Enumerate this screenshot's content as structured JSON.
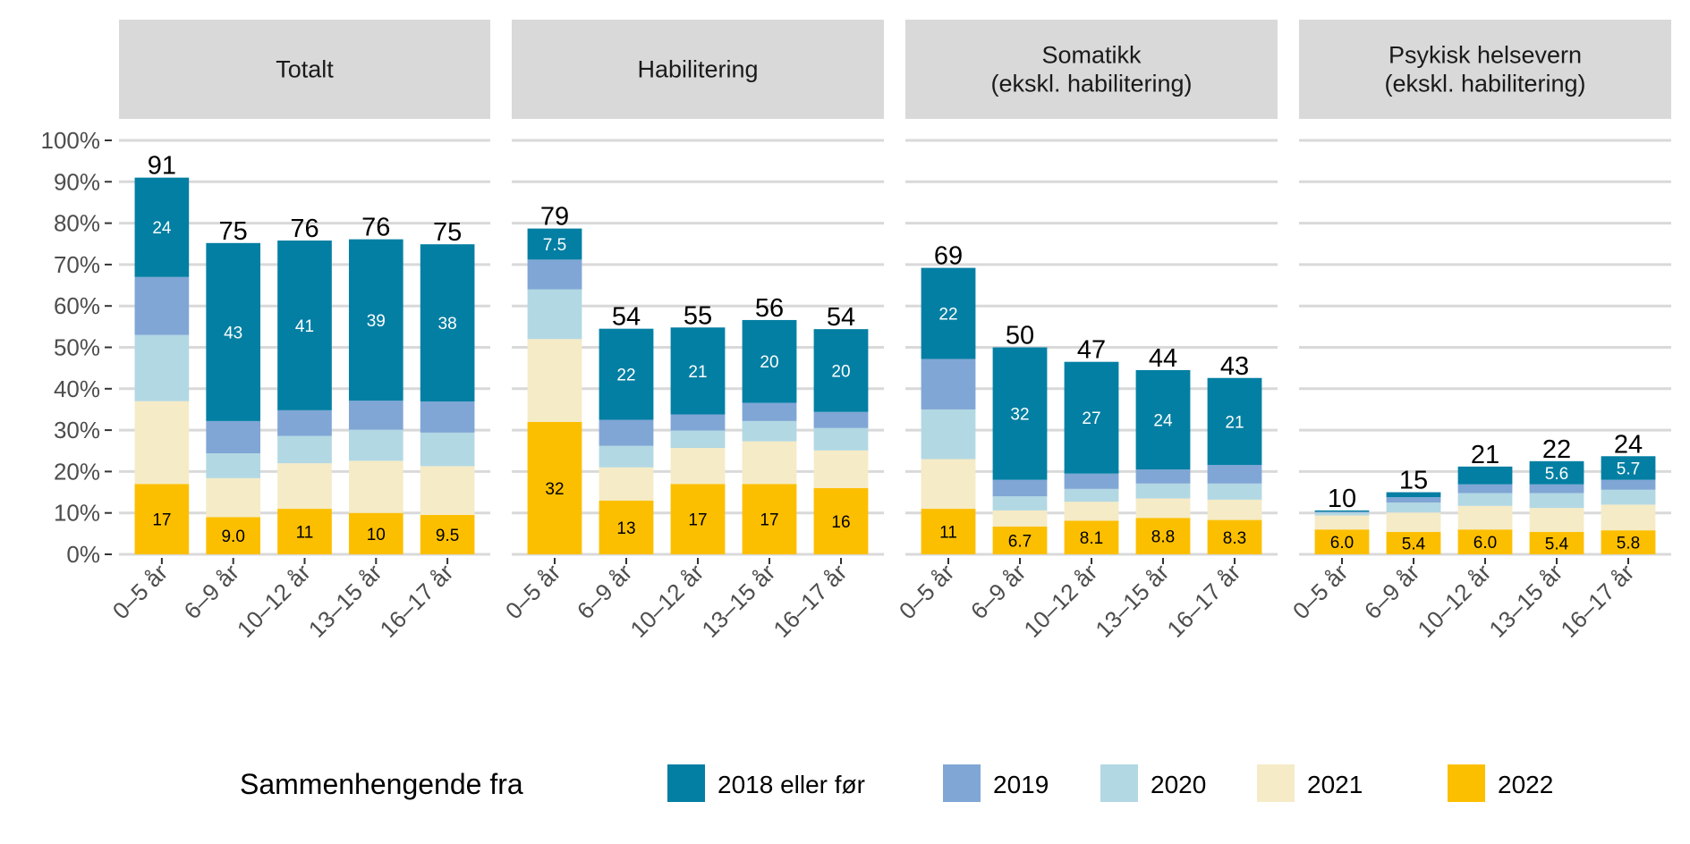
{
  "chart_data": {
    "type": "bar",
    "stacked": true,
    "categories": [
      "0–5 år",
      "6–9 år",
      "10–12 år",
      "13–15 år",
      "16–17 år"
    ],
    "ylim": [
      0,
      100
    ],
    "y_ticks": [
      "0%",
      "10%",
      "20%",
      "30%",
      "40%",
      "50%",
      "60%",
      "70%",
      "80%",
      "90%",
      "100%"
    ],
    "grid": true,
    "legend": {
      "title": "Sammenhengende fra",
      "position": "bottom",
      "entries": [
        "2018 eller før",
        "2019",
        "2020",
        "2021",
        "2022"
      ]
    },
    "colors": {
      "2018 eller før": "#037fa3",
      "2019": "#80a6d5",
      "2020": "#b2d8e3",
      "2021": "#f5ebc6",
      "2022": "#fcbf00"
    },
    "panels": [
      {
        "title": "Totalt",
        "totals": [
          "91",
          "75",
          "76",
          "76",
          "75"
        ],
        "series": [
          {
            "name": "2022",
            "values": [
              17,
              9.0,
              11,
              10,
              9.5
            ],
            "labels": [
              "17",
              "9.0",
              "11",
              "10",
              "9.5"
            ]
          },
          {
            "name": "2021",
            "values": [
              20,
              9.4,
              11,
              12.6,
              11.8
            ]
          },
          {
            "name": "2020",
            "values": [
              16,
              6,
              6.6,
              7.5,
              8.1
            ]
          },
          {
            "name": "2019",
            "values": [
              14,
              7.8,
              6.2,
              7,
              7.5
            ]
          },
          {
            "name": "2018 eller før",
            "values": [
              24,
              43,
              41,
              39,
              38
            ],
            "labels": [
              "24",
              "43",
              "41",
              "39",
              "38"
            ]
          }
        ]
      },
      {
        "title": "Habilitering",
        "totals": [
          "79",
          "54",
          "55",
          "56",
          "54"
        ],
        "series": [
          {
            "name": "2022",
            "values": [
              32,
              13,
              17,
              17,
              16
            ],
            "labels": [
              "32",
              "13",
              "17",
              "17",
              "16"
            ]
          },
          {
            "name": "2021",
            "values": [
              20,
              8,
              8.7,
              10.3,
              9.1
            ]
          },
          {
            "name": "2020",
            "values": [
              12,
              5.2,
              4.2,
              4.9,
              5.4
            ]
          },
          {
            "name": "2019",
            "values": [
              7.2,
              6.3,
              3.9,
              4.4,
              3.9
            ]
          },
          {
            "name": "2018 eller før",
            "values": [
              7.5,
              22,
              21,
              20,
              20
            ],
            "labels": [
              "7.5",
              "22",
              "21",
              "20",
              "20"
            ]
          }
        ]
      },
      {
        "title": "Somatikk\n(ekskl. habilitering)",
        "title_lines": [
          "Somatikk",
          "(ekskl. habilitering)"
        ],
        "totals": [
          "69",
          "50",
          "47",
          "44",
          "43"
        ],
        "series": [
          {
            "name": "2022",
            "values": [
              11,
              6.7,
              8.1,
              8.8,
              8.3
            ],
            "labels": [
              "11",
              "6.7",
              "8.1",
              "8.8",
              "8.3"
            ]
          },
          {
            "name": "2021",
            "values": [
              12,
              3.9,
              4.6,
              4.7,
              4.9
            ]
          },
          {
            "name": "2020",
            "values": [
              12,
              3.4,
              3.1,
              3.6,
              3.9
            ]
          },
          {
            "name": "2019",
            "values": [
              12.2,
              4,
              3.7,
              3.4,
              4.5
            ]
          },
          {
            "name": "2018 eller før",
            "values": [
              22,
              32,
              27,
              24,
              21
            ],
            "labels": [
              "22",
              "32",
              "27",
              "24",
              "21"
            ]
          }
        ]
      },
      {
        "title": "Psykisk helsevern\n(ekskl. habilitering)",
        "title_lines": [
          "Psykisk helsevern",
          "(ekskl. habilitering)"
        ],
        "totals": [
          "10",
          "15",
          "21",
          "22",
          "24"
        ],
        "series": [
          {
            "name": "2022",
            "values": [
              6.0,
              5.4,
              6.0,
              5.4,
              5.8
            ],
            "labels": [
              "6.0",
              "5.4",
              "6.0",
              "5.4",
              "5.8"
            ]
          },
          {
            "name": "2021",
            "values": [
              3.4,
              4.7,
              5.7,
              5.8,
              6.2
            ]
          },
          {
            "name": "2020",
            "values": [
              0.7,
              2.4,
              3.1,
              3.6,
              3.6
            ]
          },
          {
            "name": "2019",
            "values": [
              0.2,
              1.3,
              2.1,
              2.1,
              2.4
            ]
          },
          {
            "name": "2018 eller før",
            "values": [
              0.3,
              1.2,
              4.3,
              5.6,
              5.7
            ],
            "labels": [
              "",
              "",
              "",
              "5.6",
              "5.7"
            ]
          }
        ]
      }
    ]
  }
}
